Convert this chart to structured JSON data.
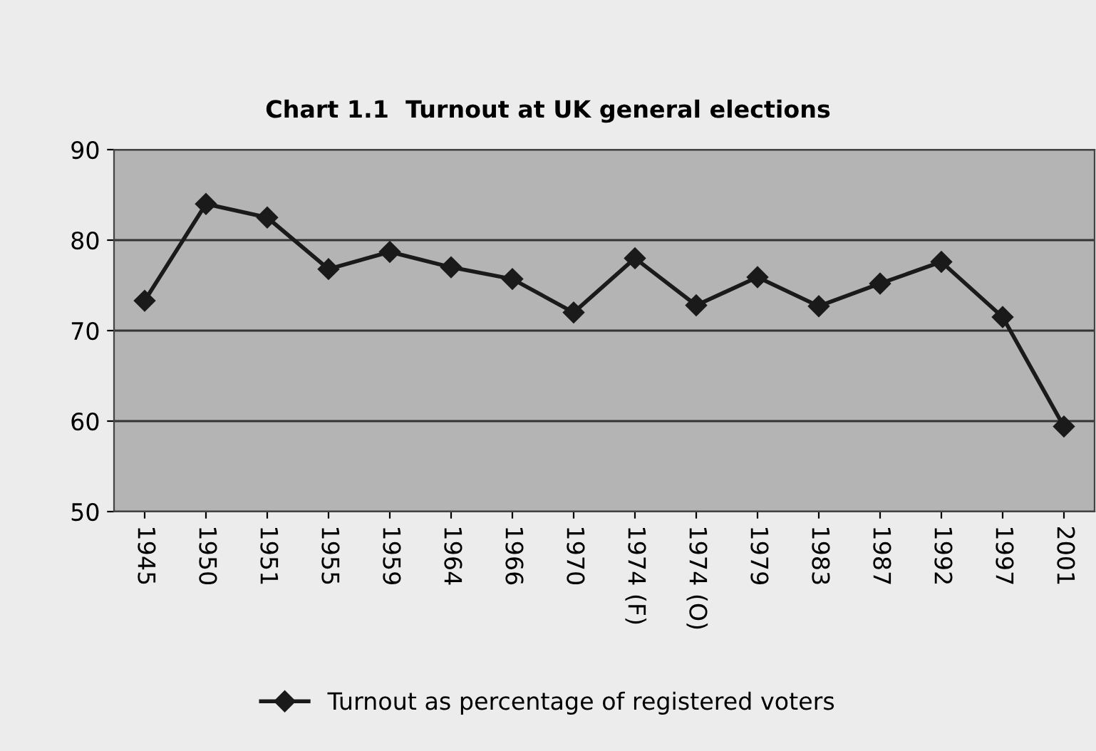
{
  "chart_data": {
    "type": "line",
    "title": "Chart 1.1  Turnout at UK general elections",
    "categories": [
      "1945",
      "1950",
      "1951",
      "1955",
      "1959",
      "1964",
      "1966",
      "1970",
      "1974 (F)",
      "1974 (O)",
      "1979",
      "1983",
      "1987",
      "1992",
      "1997",
      "2001"
    ],
    "series": [
      {
        "name": "Turnout as percentage of registered voters",
        "color": "#1a1a1a",
        "values": [
          73.3,
          84.0,
          82.5,
          76.8,
          78.7,
          77.0,
          75.7,
          72.0,
          78.0,
          72.8,
          75.9,
          72.7,
          75.2,
          77.6,
          71.5,
          59.4
        ]
      }
    ],
    "ylim": [
      50,
      90
    ],
    "yticks": [
      50,
      60,
      70,
      80,
      90
    ],
    "grid": "y",
    "legend": "bottom",
    "marker": "diamond",
    "line_style": "solid"
  }
}
